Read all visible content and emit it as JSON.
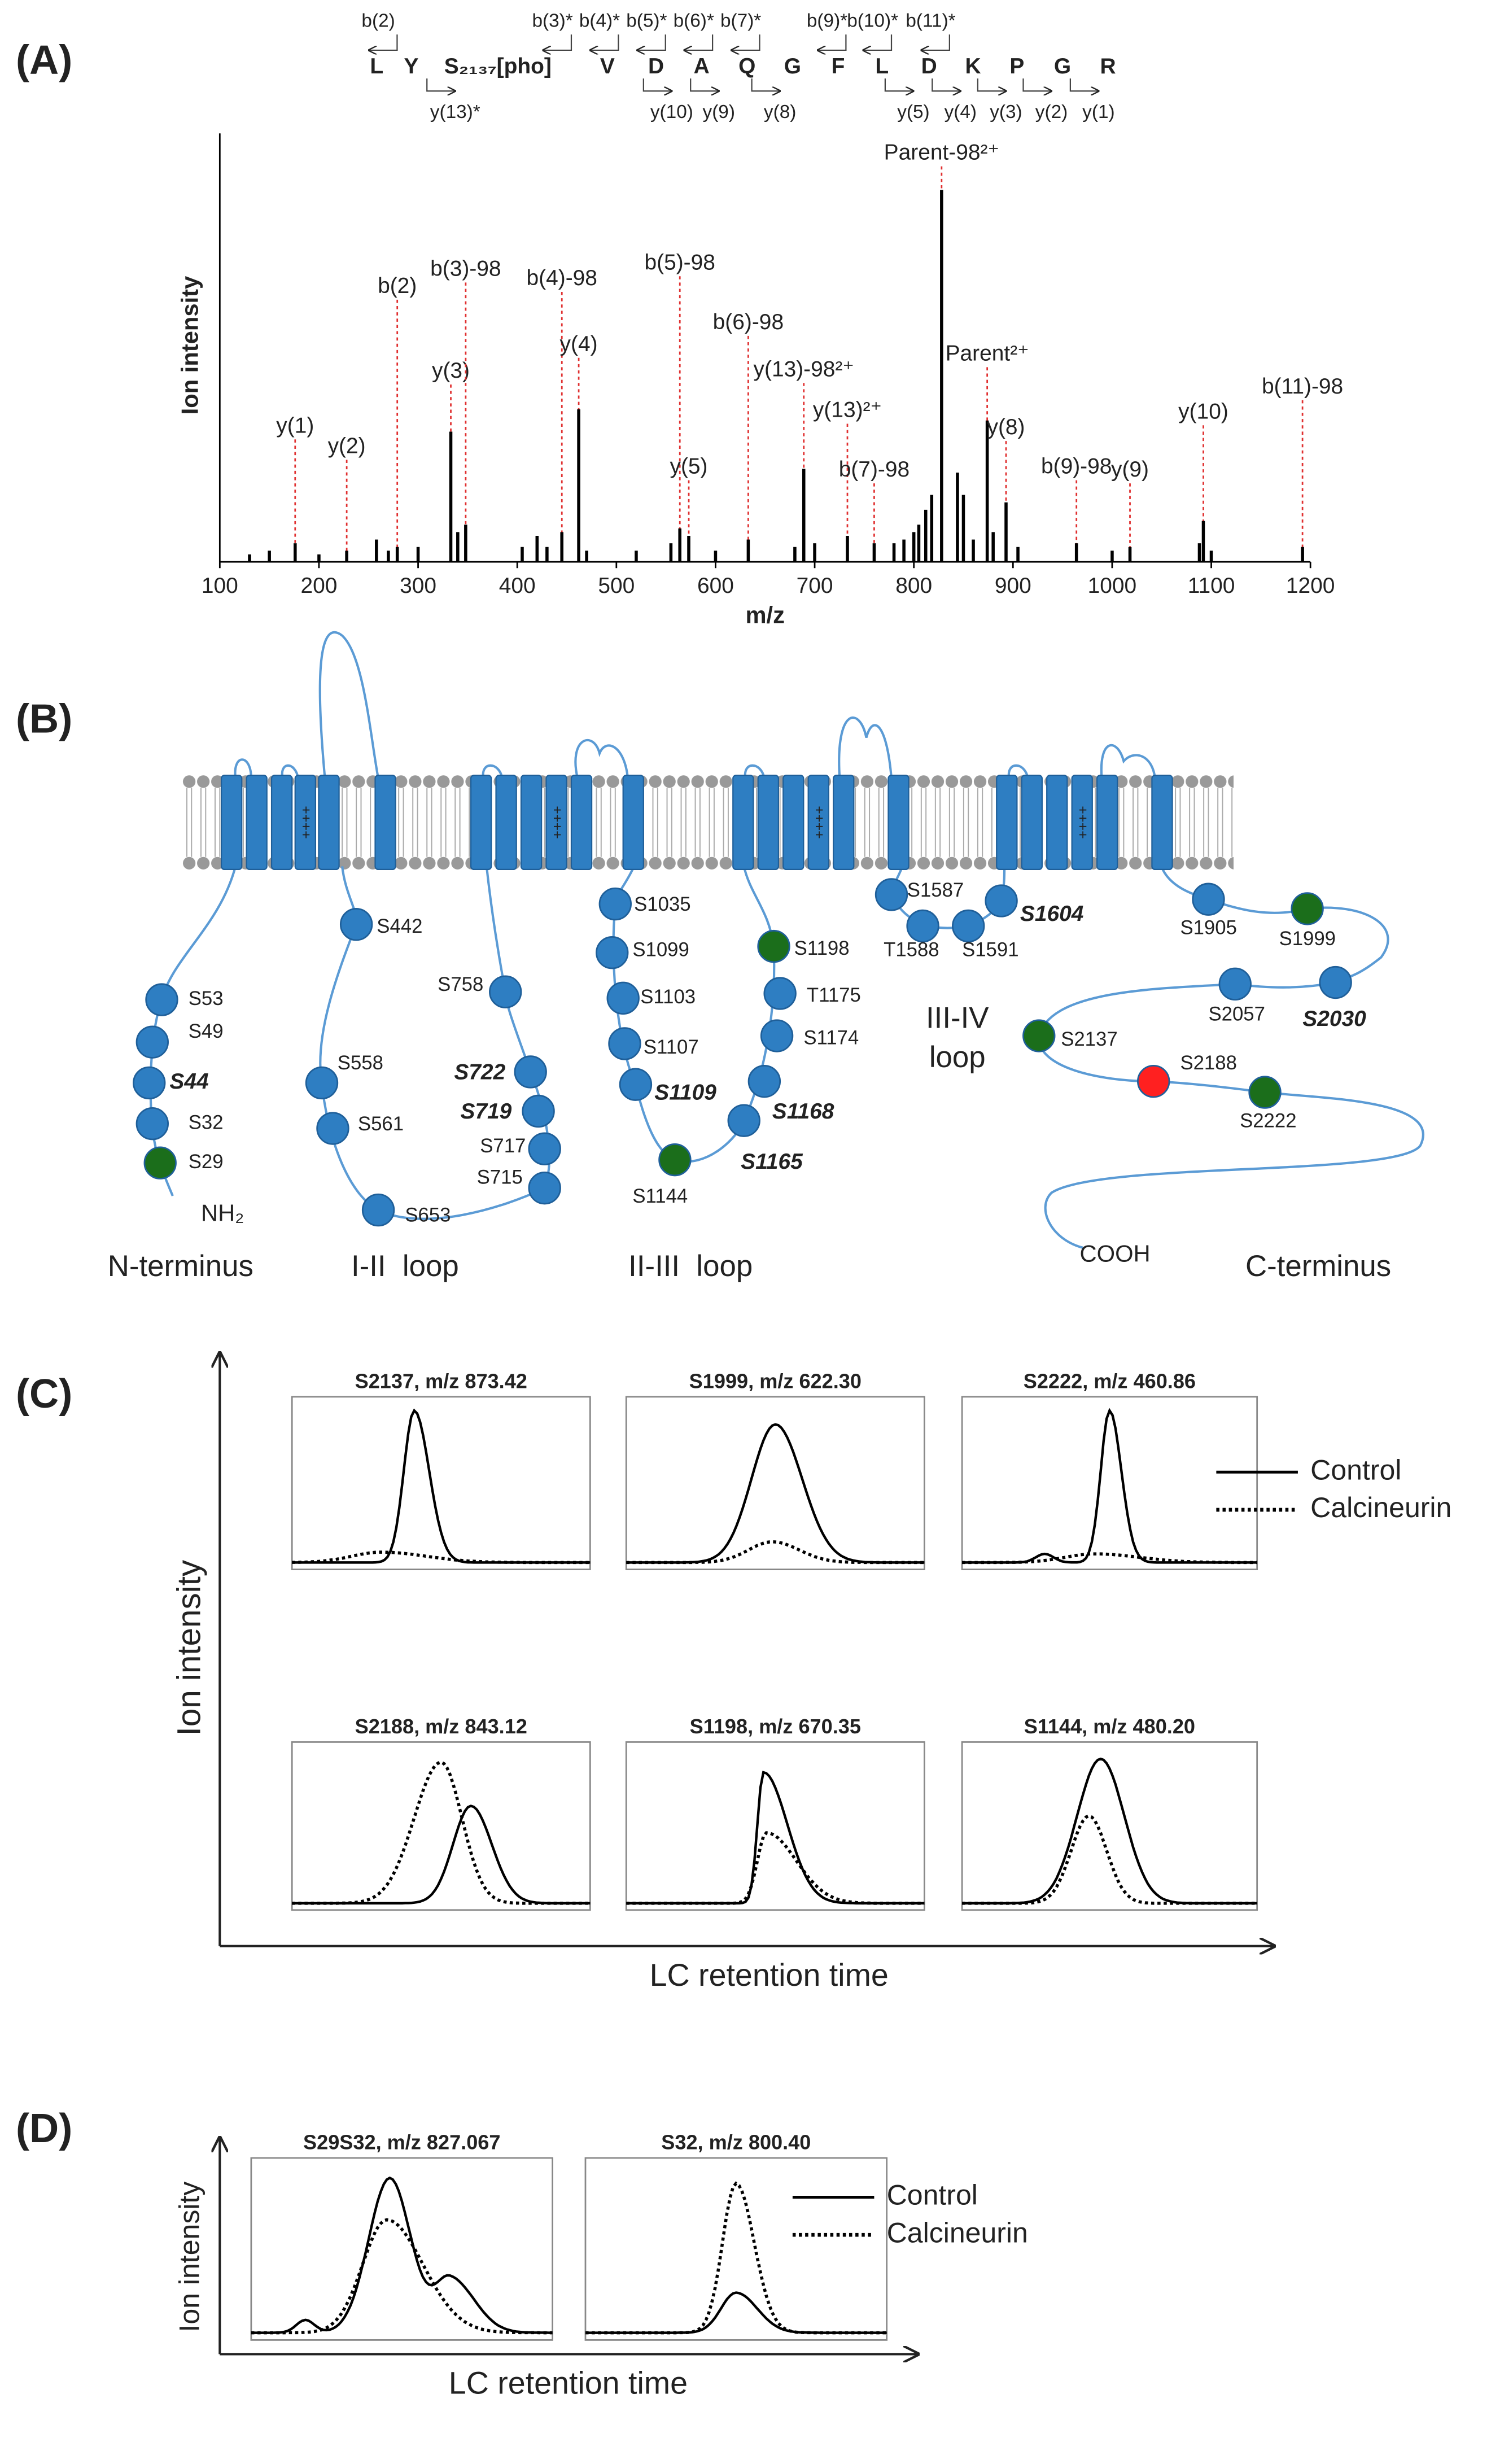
{
  "panel_labels": [
    "(A)",
    "(B)",
    "(C)",
    "(D)"
  ],
  "chart_data": {
    "type": "stem",
    "x_label": "m/z",
    "y_label": "Ion intensity",
    "xlim": [
      100,
      1200
    ],
    "xticks": [
      100,
      200,
      300,
      400,
      500,
      600,
      700,
      800,
      900,
      1000,
      1100,
      1200
    ],
    "color": "#000000",
    "annotation_color": "#e03030",
    "peaks": {
      "x": [
        130,
        150,
        200,
        258,
        270,
        300,
        340,
        405,
        420,
        430,
        470,
        520,
        555,
        600,
        680,
        700,
        780,
        790,
        800,
        805,
        812,
        818,
        844,
        850,
        860,
        880,
        905,
        1000,
        1088,
        1100
      ],
      "values": [
        2,
        3,
        2,
        6,
        3,
        4,
        8,
        4,
        7,
        4,
        3,
        3,
        5,
        3,
        4,
        5,
        5,
        6,
        8,
        10,
        14,
        18,
        24,
        18,
        6,
        8,
        4,
        3,
        5,
        3
      ]
    },
    "annotations": [
      {
        "label": "y(1)",
        "x": 176,
        "value": 5
      },
      {
        "label": "y(2)",
        "x": 228,
        "value": 3
      },
      {
        "label": "b(2)",
        "x": 279,
        "value": 4
      },
      {
        "label": "y(3)",
        "x": 333,
        "value": 35
      },
      {
        "label": "b(3)-98",
        "x": 348,
        "value": 10
      },
      {
        "label": "b(4)-98",
        "x": 445,
        "value": 8
      },
      {
        "label": "y(4)",
        "x": 462,
        "value": 41
      },
      {
        "label": "b(5)-98",
        "x": 564,
        "value": 9
      },
      {
        "label": "y(5)",
        "x": 573,
        "value": 7
      },
      {
        "label": "b(6)-98",
        "x": 633,
        "value": 6
      },
      {
        "label": "y(13)-98²⁺",
        "x": 689,
        "value": 25
      },
      {
        "label": "y(13)²⁺",
        "x": 733,
        "value": 7
      },
      {
        "label": "b(7)-98",
        "x": 760,
        "value": 5
      },
      {
        "label": "Parent-98²⁺",
        "x": 828,
        "value": 100
      },
      {
        "label": "Parent²⁺",
        "x": 874,
        "value": 38
      },
      {
        "label": "y(8)",
        "x": 893,
        "value": 16
      },
      {
        "label": "b(9)-98",
        "x": 964,
        "value": 5
      },
      {
        "label": "y(9)",
        "x": 1018,
        "value": 4
      },
      {
        "label": "y(10)",
        "x": 1092,
        "value": 11
      },
      {
        "label": "b(11)-98",
        "x": 1192,
        "value": 4
      }
    ]
  },
  "sequence": {
    "residues": [
      "L",
      "Y",
      "S₂₁₃₇[pho]",
      "V",
      "D",
      "A",
      "Q",
      "G",
      "F",
      "L",
      "D",
      "K",
      "P",
      "G",
      "R"
    ],
    "b_ions": [
      "b(2)",
      "b(3)*",
      "b(4)*",
      "b(5)*",
      "b(6)*",
      "b(7)*",
      "b(9)*",
      "b(10)*",
      "b(11)*"
    ],
    "y_ions": [
      "y(13)*",
      "y(10)",
      "y(9)",
      "y(8)",
      "y(5)",
      "y(4)",
      "y(3)",
      "y(2)",
      "y(1)"
    ]
  },
  "topology": {
    "helix_charge": "++++",
    "terminals": [
      "NH₂",
      "COOH"
    ],
    "regions": [
      "N-terminus",
      "I-II  loop",
      "II-III  loop",
      "III-IV",
      "loop",
      "C-terminus"
    ],
    "sites": [
      {
        "label": "S53",
        "color": "#2e7ec2"
      },
      {
        "label": "S49",
        "color": "#2e7ec2"
      },
      {
        "label": "S44",
        "color": "#2e7ec2",
        "emphasis": true
      },
      {
        "label": "S32",
        "color": "#2e7ec2"
      },
      {
        "label": "S29",
        "color": "#1b6e1b"
      },
      {
        "label": "S442",
        "color": "#2e7ec2"
      },
      {
        "label": "S558",
        "color": "#2e7ec2"
      },
      {
        "label": "S561",
        "color": "#2e7ec2"
      },
      {
        "label": "S653",
        "color": "#2e7ec2"
      },
      {
        "label": "S715",
        "color": "#2e7ec2"
      },
      {
        "label": "S717",
        "color": "#2e7ec2"
      },
      {
        "label": "S719",
        "color": "#2e7ec2",
        "emphasis": true
      },
      {
        "label": "S722",
        "color": "#2e7ec2",
        "emphasis": true
      },
      {
        "label": "S758",
        "color": "#2e7ec2"
      },
      {
        "label": "S1035",
        "color": "#2e7ec2"
      },
      {
        "label": "S1099",
        "color": "#2e7ec2"
      },
      {
        "label": "S1103",
        "color": "#2e7ec2"
      },
      {
        "label": "S1107",
        "color": "#2e7ec2"
      },
      {
        "label": "S1109",
        "color": "#2e7ec2",
        "emphasis": true
      },
      {
        "label": "S1144",
        "color": "#1b6e1b"
      },
      {
        "label": "S1165",
        "color": "#2e7ec2",
        "emphasis": true
      },
      {
        "label": "S1168",
        "color": "#2e7ec2",
        "emphasis": true
      },
      {
        "label": "S1174",
        "color": "#2e7ec2"
      },
      {
        "label": "T1175",
        "color": "#2e7ec2"
      },
      {
        "label": "S1198",
        "color": "#1b6e1b"
      },
      {
        "label": "S1587",
        "color": "#2e7ec2"
      },
      {
        "label": "T1588",
        "color": "#2e7ec2"
      },
      {
        "label": "S1591",
        "color": "#2e7ec2"
      },
      {
        "label": "S1604",
        "color": "#2e7ec2",
        "emphasis": true
      },
      {
        "label": "S1905",
        "color": "#2e7ec2"
      },
      {
        "label": "S1999",
        "color": "#1b6e1b"
      },
      {
        "label": "S2030",
        "color": "#2e7ec2",
        "emphasis": true
      },
      {
        "label": "S2057",
        "color": "#2e7ec2"
      },
      {
        "label": "S2137",
        "color": "#1b6e1b"
      },
      {
        "label": "S2188",
        "color": "#ff2020"
      },
      {
        "label": "S2222",
        "color": "#1b6e1b"
      }
    ]
  },
  "chromatograms": {
    "y_label": "Ion intensity",
    "x_label": "LC retention time",
    "legend": [
      "Control",
      "Calcineurin"
    ],
    "panels": [
      "S2137, m/z 873.42",
      "S1999, m/z 622.30",
      "S2222, m/z 460.86",
      "S2188, m/z 843.12",
      "S1198, m/z 670.35",
      "S1144, m/z 480.20"
    ]
  },
  "panel_d": {
    "y_label": "Ion intensity",
    "x_label": "LC retention time",
    "legend": [
      "Control",
      "Calcineurin"
    ],
    "panels": [
      "S29S32, m/z 827.067",
      "S32, m/z 800.40"
    ]
  }
}
